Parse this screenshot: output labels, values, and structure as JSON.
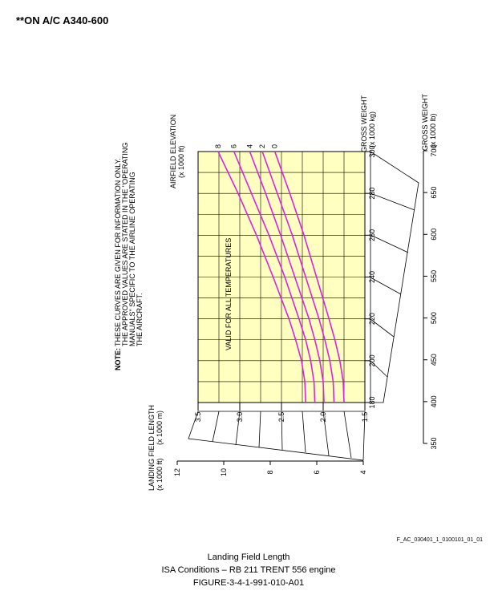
{
  "chart_data": {
    "type": "line",
    "header": "**ON A/C A340-600",
    "note_label": "NOTE:",
    "note": [
      "THESE CURVES ARE GIVEN FOR INFORMATION ONLY.",
      "THE APPROVED VALUES ARE STATED IN THE \"OPERATING",
      "MANUALS\" SPECIFIC TO THE AIRLINE OPERATING",
      "THE AIRCRAFT."
    ],
    "annotation": "VALID FOR ALL TEMPERATURES",
    "legend_title": [
      "AIRFIELD ELEVATION",
      "(x 1000 ft)"
    ],
    "x_label": [
      "GROSS WEIGHT",
      "(x 1000 kg)"
    ],
    "x2_label": [
      "GROSS WEIGHT",
      "(x 1000 lb)"
    ],
    "y_label": [
      "LANDING FIELD LENGTH",
      "(x 1000 m)"
    ],
    "y2_label": [
      "(x 1000 ft)"
    ],
    "x": [
      180,
      190,
      200,
      210,
      220,
      240,
      260,
      280,
      300
    ],
    "xlim": [
      180,
      300
    ],
    "xticks": [
      180,
      200,
      220,
      240,
      260,
      280,
      300
    ],
    "x2lim": [
      350,
      700
    ],
    "x2ticks": [
      350,
      400,
      450,
      500,
      550,
      600,
      650,
      700
    ],
    "ylim": [
      1.5,
      3.5
    ],
    "yticks": [
      3.5,
      {
        "value": 3,
        "label": "3.0"
      },
      2.5,
      {
        "value": 2,
        "label": "2.0"
      },
      1.5
    ],
    "y2lim": [
      4,
      12
    ],
    "y2ticks": [
      12,
      10,
      8,
      6,
      4
    ],
    "grid": true,
    "plot_color": "#ffffc0",
    "series": [
      {
        "name": "8",
        "color": "#e020e0",
        "values": [
          2.21,
          2.22,
          2.26,
          2.33,
          2.41,
          2.6,
          2.8,
          3.02,
          3.26
        ]
      },
      {
        "name": "6",
        "color": "#e020e0",
        "values": [
          2.1,
          2.11,
          2.15,
          2.21,
          2.29,
          2.46,
          2.65,
          2.86,
          3.07
        ]
      },
      {
        "name": "4",
        "color": "#e020e0",
        "values": [
          1.99,
          2.0,
          2.04,
          2.1,
          2.17,
          2.34,
          2.51,
          2.69,
          2.88
        ]
      },
      {
        "name": "2",
        "color": "#e020e0",
        "values": [
          1.87,
          1.88,
          1.92,
          1.98,
          2.05,
          2.21,
          2.37,
          2.55,
          2.73
        ]
      },
      {
        "name": "0",
        "color": "#e020e0",
        "values": [
          1.75,
          1.76,
          1.8,
          1.86,
          1.93,
          2.08,
          2.23,
          2.4,
          2.58
        ]
      }
    ],
    "figure_id": "F_AC_030401_1_0100101_01_01",
    "caption": [
      "Landing Field Length",
      "ISA Conditions – RB 211 TRENT 556 engine",
      "FIGURE-3-4-1-991-010-A01"
    ]
  }
}
